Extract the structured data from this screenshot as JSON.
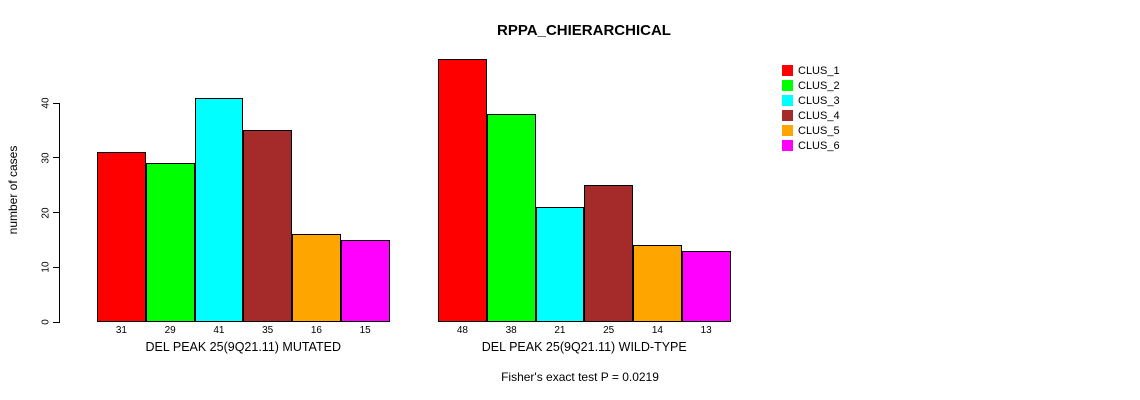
{
  "chart_data": {
    "type": "bar",
    "title": "RPPA_CHIERARCHICAL",
    "ylabel": "number of cases",
    "ylim": [
      0,
      40
    ],
    "yticks": [
      0,
      10,
      20,
      30,
      40
    ],
    "grid": false,
    "legend_position": "right",
    "categories": [
      "CLUS_1",
      "CLUS_2",
      "CLUS_3",
      "CLUS_4",
      "CLUS_5",
      "CLUS_6"
    ],
    "series_colors": [
      "#FF0000",
      "#00FF00",
      "#00FFFF",
      "#A52A2A",
      "#FFA500",
      "#FF00FF"
    ],
    "groups": [
      {
        "label": "DEL PEAK 25(9Q21.11) MUTATED",
        "values": [
          31,
          29,
          41,
          35,
          16,
          15
        ]
      },
      {
        "label": "DEL PEAK 25(9Q21.11) WILD-TYPE",
        "values": [
          48,
          38,
          21,
          25,
          14,
          13
        ]
      }
    ],
    "legend": [
      {
        "label": "CLUS_1",
        "color": "#FF0000"
      },
      {
        "label": "CLUS_2",
        "color": "#00FF00"
      },
      {
        "label": "CLUS_3",
        "color": "#00FFFF"
      },
      {
        "label": "CLUS_4",
        "color": "#A52A2A"
      },
      {
        "label": "CLUS_5",
        "color": "#FFA500"
      },
      {
        "label": "CLUS_6",
        "color": "#FF00FF"
      }
    ],
    "annotation": "Fisher's exact test P = 0.0219"
  }
}
